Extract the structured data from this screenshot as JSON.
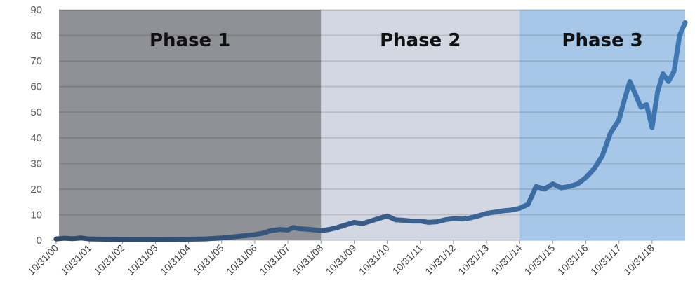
{
  "chart_data": {
    "type": "line",
    "title": "",
    "xlabel": "",
    "ylabel": "",
    "ylim": [
      0,
      90
    ],
    "yticks": [
      0,
      10,
      20,
      30,
      40,
      50,
      60,
      70,
      80,
      90
    ],
    "x_tick_labels": [
      "10/31/00",
      "10/31/01",
      "10/31/02",
      "10/31/03",
      "10/31/04",
      "10/31/05",
      "10/31/06",
      "10/31/07",
      "10/31/08",
      "10/31/09",
      "10/31/10",
      "10/31/11",
      "10/31/12",
      "10/31/13",
      "10/31/14",
      "10/31/15",
      "10/31/16",
      "10/31/17",
      "10/31/18"
    ],
    "grid": true,
    "legend": "none",
    "phases": [
      {
        "label": "Phase 1",
        "start": "2000-10-31",
        "end": "2008-10-31",
        "color": "#909196"
      },
      {
        "label": "Phase 2",
        "start": "2008-10-31",
        "end": "2014-10-31",
        "color": "#d3d7e1"
      },
      {
        "label": "Phase 3",
        "start": "2014-10-31",
        "end": "2019-10-31",
        "color": "#a6c7e8"
      }
    ],
    "series": [
      {
        "color_dark": "#2f4868",
        "color_light": "#3f79b6",
        "points": [
          [
            "2000-10-31",
            0.5
          ],
          [
            "2001-01-31",
            0.8
          ],
          [
            "2001-04-30",
            0.6
          ],
          [
            "2001-07-31",
            0.9
          ],
          [
            "2001-10-31",
            0.5
          ],
          [
            "2002-04-30",
            0.4
          ],
          [
            "2002-10-31",
            0.3
          ],
          [
            "2003-04-30",
            0.3
          ],
          [
            "2003-10-31",
            0.3
          ],
          [
            "2004-04-30",
            0.3
          ],
          [
            "2004-10-31",
            0.4
          ],
          [
            "2005-04-30",
            0.5
          ],
          [
            "2005-10-31",
            0.9
          ],
          [
            "2006-04-30",
            1.5
          ],
          [
            "2006-10-31",
            2.2
          ],
          [
            "2007-01-31",
            2.8
          ],
          [
            "2007-04-30",
            3.8
          ],
          [
            "2007-07-31",
            4.2
          ],
          [
            "2007-10-31",
            4.0
          ],
          [
            "2007-12-31",
            5.0
          ],
          [
            "2008-02-29",
            4.5
          ],
          [
            "2008-05-31",
            4.3
          ],
          [
            "2008-08-31",
            4.0
          ],
          [
            "2008-10-31",
            3.8
          ],
          [
            "2009-01-31",
            4.2
          ],
          [
            "2009-04-30",
            5.0
          ],
          [
            "2009-07-31",
            6.0
          ],
          [
            "2009-10-31",
            7.0
          ],
          [
            "2010-01-31",
            6.5
          ],
          [
            "2010-04-30",
            7.5
          ],
          [
            "2010-07-31",
            8.5
          ],
          [
            "2010-10-31",
            9.5
          ],
          [
            "2011-01-31",
            8.0
          ],
          [
            "2011-04-30",
            7.8
          ],
          [
            "2011-07-31",
            7.5
          ],
          [
            "2011-10-31",
            7.5
          ],
          [
            "2012-01-31",
            7.0
          ],
          [
            "2012-04-30",
            7.2
          ],
          [
            "2012-07-31",
            8.0
          ],
          [
            "2012-10-31",
            8.5
          ],
          [
            "2013-01-31",
            8.3
          ],
          [
            "2013-04-30",
            8.7
          ],
          [
            "2013-07-31",
            9.5
          ],
          [
            "2013-10-31",
            10.5
          ],
          [
            "2014-01-31",
            11.0
          ],
          [
            "2014-04-30",
            11.5
          ],
          [
            "2014-07-31",
            11.8
          ],
          [
            "2014-10-31",
            12.5
          ],
          [
            "2015-01-31",
            14.0
          ],
          [
            "2015-04-30",
            21.0
          ],
          [
            "2015-07-31",
            20.0
          ],
          [
            "2015-10-31",
            22.0
          ],
          [
            "2016-01-31",
            20.5
          ],
          [
            "2016-04-30",
            21.0
          ],
          [
            "2016-07-31",
            22.0
          ],
          [
            "2016-10-31",
            24.5
          ],
          [
            "2017-01-31",
            28.0
          ],
          [
            "2017-04-30",
            33.0
          ],
          [
            "2017-07-31",
            42.0
          ],
          [
            "2017-10-31",
            47.0
          ],
          [
            "2017-12-31",
            55.0
          ],
          [
            "2018-02-28",
            62.0
          ],
          [
            "2018-04-30",
            57.0
          ],
          [
            "2018-06-30",
            52.0
          ],
          [
            "2018-08-31",
            53.0
          ],
          [
            "2018-10-31",
            44.0
          ],
          [
            "2018-12-31",
            58.0
          ],
          [
            "2019-02-28",
            65.0
          ],
          [
            "2019-04-30",
            62.0
          ],
          [
            "2019-06-30",
            66.0
          ],
          [
            "2019-08-31",
            80.0
          ],
          [
            "2019-10-31",
            85.0
          ]
        ]
      }
    ]
  }
}
